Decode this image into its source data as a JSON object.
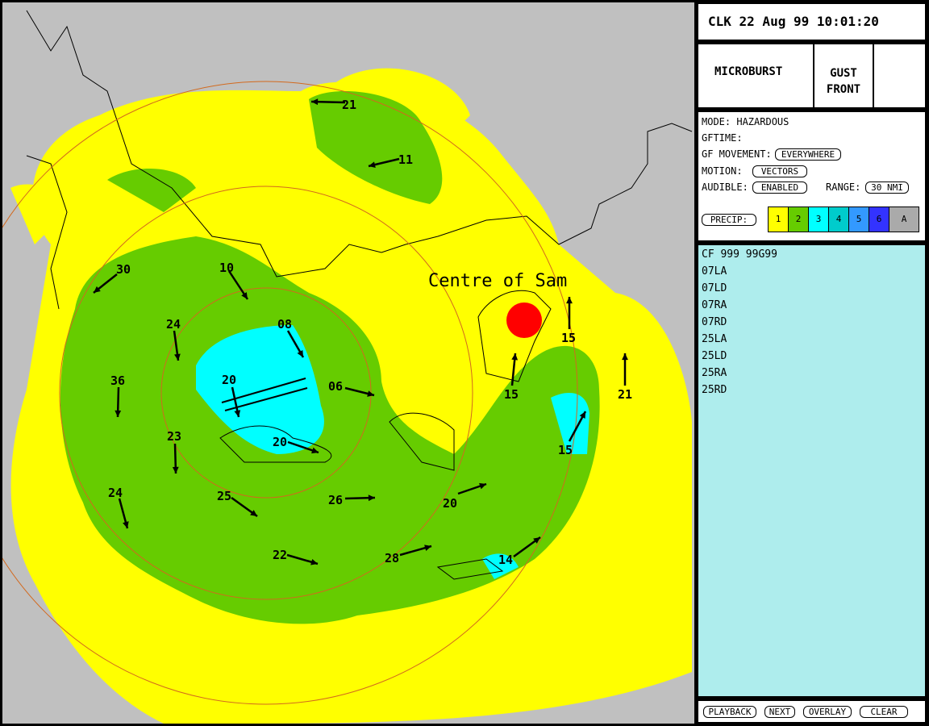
{
  "header": {
    "clock": "CLK 22 Aug 99 10:01:20"
  },
  "tabs": [
    "MICROBURST",
    "GUST FRONT"
  ],
  "settings": {
    "mode": "MODE: HAZARDOUS",
    "gftime": "GFTIME:",
    "gf_movement": {
      "label": "GF MOVEMENT:",
      "value": "EVERYWHERE"
    },
    "motion": {
      "label": "MOTION:",
      "value": "VECTORS"
    },
    "audible": {
      "label": "AUDIBLE:",
      "value": "ENABLED"
    },
    "range": {
      "label": "RANGE:",
      "value": "30 NMI"
    },
    "precip": {
      "label": "PRECIP:",
      "levels": [
        "1",
        "2",
        "3",
        "4",
        "5",
        "6",
        "A"
      ]
    }
  },
  "runways": [
    "CF 999 99G99",
    "07LA",
    "07LD",
    "07RA",
    "07RD",
    "25LA",
    "25LD",
    "25RA",
    "25RD"
  ],
  "buttons": [
    "PLAYBACK",
    "NEXT",
    "OVERLAY",
    "CLEAR"
  ],
  "map": {
    "storm_label": "Centre of Sam",
    "vectors": [
      "21",
      "11",
      "30",
      "10",
      "24",
      "08",
      "36",
      "20",
      "06",
      "23",
      "20",
      "24",
      "25",
      "26",
      "20",
      "22",
      "28",
      "14",
      "15",
      "15",
      "15",
      "21"
    ]
  }
}
